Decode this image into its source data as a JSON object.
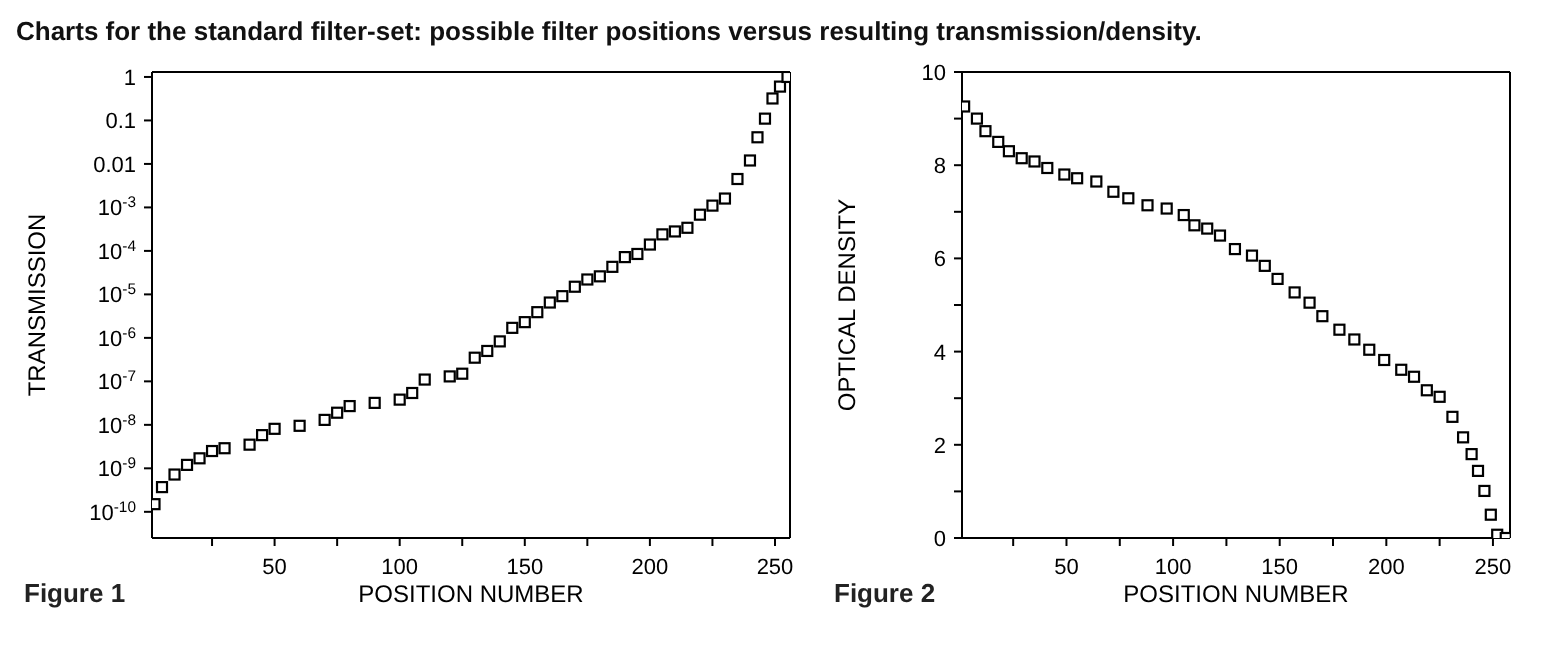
{
  "chart_data": [
    {
      "type": "scatter",
      "title": "Charts for the standard filter-set: possible filter positions versus resulting transmission/density.",
      "xlabel": "POSITION NUMBER",
      "ylabel": "TRANSMISSION",
      "annotations": [
        "Figure 1"
      ],
      "log": "y",
      "marker": "square",
      "grid": false,
      "legend": false,
      "xlim": [
        1,
        256
      ],
      "xticks": [
        {
          "value": 25,
          "label": null
        },
        50,
        {
          "value": 75,
          "label": null
        },
        100,
        {
          "value": 125,
          "label": null
        },
        150,
        {
          "value": 175,
          "label": null
        },
        200,
        {
          "value": 225,
          "label": null
        },
        250
      ],
      "ylim": [
        2.5e-11,
        1.3
      ],
      "yticks": [
        1,
        0.1,
        0.01,
        {
          "value": 0.001,
          "label": "10$^{-3}$"
        },
        {
          "value": 0.0001,
          "label": "10$^{-4}$"
        },
        {
          "value": 1e-05,
          "label": "10$^{-5}$"
        },
        {
          "value": 1e-06,
          "label": "10$^{-6}$"
        },
        {
          "value": 1e-07,
          "label": "10$^{-7}$"
        },
        {
          "value": 1e-08,
          "label": "10$^{-8}$"
        },
        {
          "value": 1e-09,
          "label": "10$^{-9}$"
        },
        {
          "value": 1e-10,
          "label": "10$^{-10}$"
        }
      ],
      "x": [
        2,
        5,
        10,
        15,
        20,
        25,
        30,
        40,
        45,
        50,
        60,
        70,
        75,
        80,
        90,
        100,
        105,
        110,
        120,
        125,
        130,
        135,
        140,
        145,
        150,
        155,
        160,
        165,
        170,
        175,
        180,
        185,
        190,
        195,
        200,
        205,
        210,
        215,
        220,
        225,
        230,
        235,
        240,
        243,
        246,
        249,
        252,
        255
      ],
      "series": [
        {
          "color": "#000000",
          "values": [
            1.5e-10,
            3.7e-10,
            7.2e-10,
            1.2e-09,
            1.7e-09,
            2.5e-09,
            2.9e-09,
            3.5e-09,
            5.8e-09,
            8.1e-09,
            9.5e-09,
            1.3e-08,
            1.9e-08,
            2.7e-08,
            3.2e-08,
            3.8e-08,
            5.4e-08,
            1.1e-07,
            1.3e-07,
            1.5e-07,
            3.5e-07,
            5e-07,
            8.3e-07,
            1.7e-06,
            2.3e-06,
            3.9e-06,
            6.5e-06,
            9.1e-06,
            1.5e-05,
            2.2e-05,
            2.6e-05,
            4.3e-05,
            7.2e-05,
            8.5e-05,
            0.00014,
            0.00024,
            0.00028,
            0.00034,
            0.00068,
            0.0011,
            0.0016,
            0.0045,
            0.012,
            0.041,
            0.11,
            0.32,
            0.6,
            1.0
          ]
        }
      ]
    },
    {
      "type": "scatter",
      "xlabel": "POSITION NUMBER",
      "ylabel": "OPTICAL DENSITY",
      "annotations": [
        "Figure 2"
      ],
      "marker": "square",
      "grid": false,
      "legend": false,
      "xlim": [
        1,
        258
      ],
      "xticks": [
        {
          "value": 25,
          "label": null
        },
        50,
        {
          "value": 75,
          "label": null
        },
        100,
        {
          "value": 125,
          "label": null
        },
        150,
        {
          "value": 175,
          "label": null
        },
        200,
        {
          "value": 225,
          "label": null
        },
        250
      ],
      "ylim": [
        0,
        10
      ],
      "yticks": [
        0,
        {
          "value": 1,
          "label": null
        },
        2,
        {
          "value": 3,
          "label": null
        },
        4,
        {
          "value": 5,
          "label": null
        },
        6,
        {
          "value": 7,
          "label": null
        },
        8,
        {
          "value": 9,
          "label": null
        },
        10
      ],
      "x": [
        2,
        8,
        12,
        18,
        23,
        29,
        35,
        41,
        49,
        55,
        64,
        72,
        79,
        88,
        97,
        105,
        110,
        116,
        122,
        129,
        137,
        143,
        149,
        157,
        164,
        170,
        178,
        185,
        192,
        199,
        207,
        213,
        219,
        225,
        231,
        236,
        240,
        243,
        246,
        249,
        252,
        256
      ],
      "series": [
        {
          "color": "#000000",
          "values": [
            9.26,
            9.0,
            8.73,
            8.5,
            8.3,
            8.15,
            8.08,
            7.94,
            7.8,
            7.72,
            7.65,
            7.43,
            7.29,
            7.14,
            7.07,
            6.93,
            6.71,
            6.64,
            6.49,
            6.2,
            6.06,
            5.84,
            5.56,
            5.27,
            5.05,
            4.76,
            4.47,
            4.26,
            4.04,
            3.82,
            3.61,
            3.46,
            3.17,
            3.03,
            2.6,
            2.16,
            1.8,
            1.44,
            1.01,
            0.5,
            0.07,
            0
          ]
        }
      ]
    }
  ]
}
